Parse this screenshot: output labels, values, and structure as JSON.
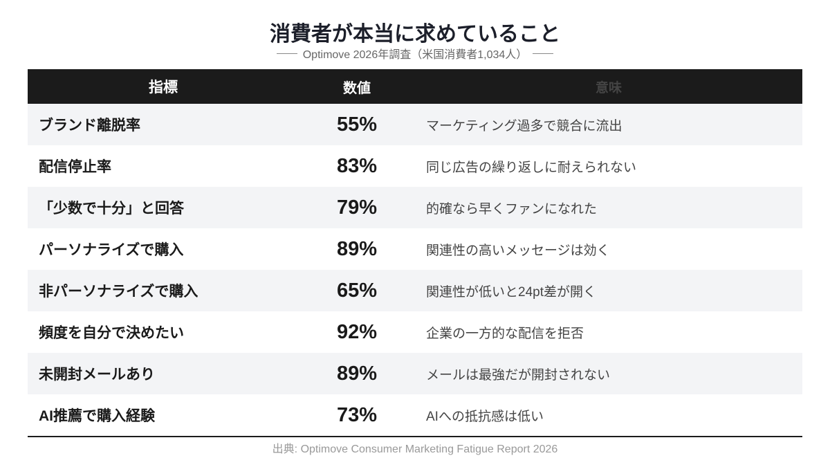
{
  "header": {
    "title": "消費者が本当に求めていること",
    "subtitle": "Optimove 2026年調査（米国消費者1,034人）"
  },
  "table": {
    "columns": [
      "指標",
      "数値",
      "意味"
    ],
    "rows": [
      [
        "ブランド離脱率",
        "55%",
        "マーケティング過多で競合に流出"
      ],
      [
        "配信停止率",
        "83%",
        "同じ広告の繰り返しに耐えられない"
      ],
      [
        "「少数で十分」と回答",
        "79%",
        "的確なら早くファンになれた"
      ],
      [
        "パーソナライズで購入",
        "89%",
        "関連性の高いメッセージは効く"
      ],
      [
        "非パーソナライズで購入",
        "65%",
        "関連性が低いと24pt差が開く"
      ],
      [
        "頻度を自分で決めたい",
        "92%",
        "企業の一方的な配信を拒否"
      ],
      [
        "未開封メールあり",
        "89%",
        "メールは最強だが開封されない"
      ],
      [
        "AI推薦で購入経験",
        "73%",
        "AIへの抵抗感は低い"
      ]
    ]
  },
  "footer": {
    "source": "出典: Optimove Consumer Marketing Fatigue Report 2026"
  }
}
